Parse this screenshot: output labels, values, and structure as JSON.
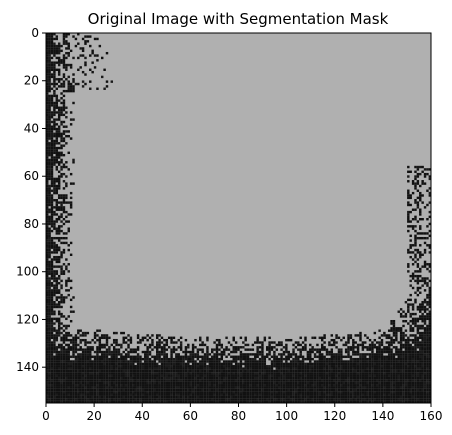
{
  "chart_data": {
    "type": "heatmap",
    "title": "Original Image with Segmentation Mask",
    "xlabel": "",
    "ylabel": "",
    "xlim": [
      0,
      160
    ],
    "ylim": [
      155,
      0
    ],
    "x_ticks": [
      0,
      20,
      40,
      60,
      80,
      100,
      120,
      140,
      160
    ],
    "y_ticks": [
      0,
      20,
      40,
      60,
      80,
      100,
      120,
      140
    ],
    "image_size": [
      161,
      156
    ],
    "grid": false,
    "legend": "none",
    "mask_color": "#b0b0b0",
    "background_color": "#111111",
    "noise_color": "#1a1a1a",
    "regions": {
      "mask_region": "large gray segmentation mask covering the upper-center and right portions of the image",
      "dark_region": "dark, noisy pixels along the left edge and bottom, extending up the lower-right"
    }
  }
}
